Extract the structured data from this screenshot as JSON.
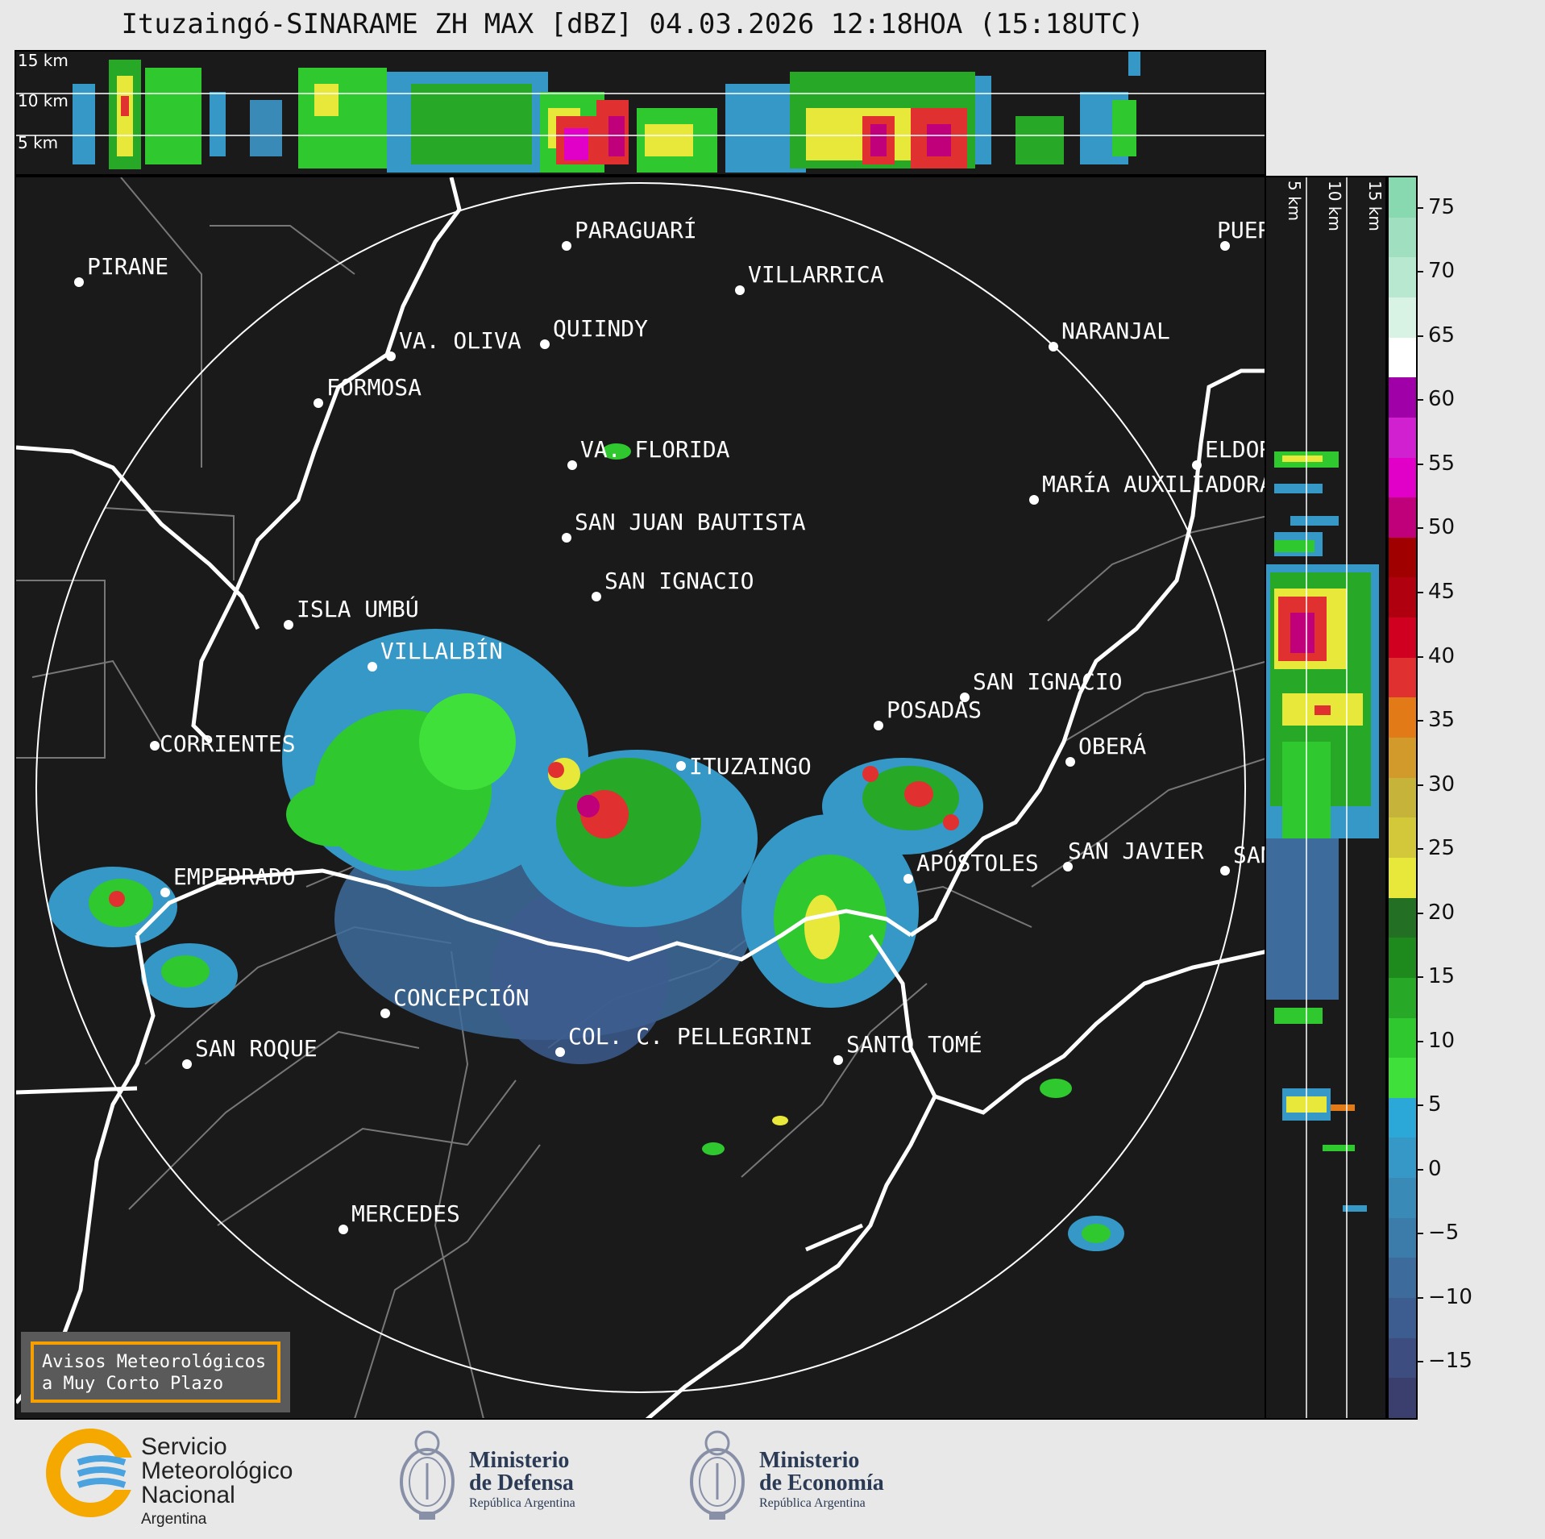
{
  "title": "Ituzaingó-SINARAME ZH MAX [dBZ] 04.03.2026 12:18HOA (15:18UTC)",
  "top_panel": {
    "altitude_labels": [
      "15 km",
      "10 km",
      "5 km"
    ]
  },
  "side_panel": {
    "altitude_labels": [
      "5 km",
      "10 km",
      "15 km"
    ]
  },
  "cities": [
    {
      "id": "pirane",
      "label": "PIRANE"
    },
    {
      "id": "paraguari",
      "label": "PARAGUARÍ"
    },
    {
      "id": "villarrica",
      "label": "VILLARRICA"
    },
    {
      "id": "quiindy",
      "label": "QUIINDY"
    },
    {
      "id": "va-oliva",
      "label": "VA. OLIVA"
    },
    {
      "id": "naranjal",
      "label": "NARANJAL"
    },
    {
      "id": "formosa",
      "label": "FORMOSA"
    },
    {
      "id": "va-florida",
      "label": "VA. FLORIDA"
    },
    {
      "id": "eldorado",
      "label": "ELDORADO"
    },
    {
      "id": "maria-auxiliadora",
      "label": "MARÍA AUXILIADORA"
    },
    {
      "id": "san-juan-bautista",
      "label": "SAN JUAN BAUTISTA"
    },
    {
      "id": "san-ignacio-py",
      "label": "SAN IGNACIO"
    },
    {
      "id": "isla-umbu",
      "label": "ISLA UMBÚ"
    },
    {
      "id": "villalbin",
      "label": "VILLALBÍN"
    },
    {
      "id": "san-ignacio-ar",
      "label": "SAN IGNACIO"
    },
    {
      "id": "posadas",
      "label": "POSADAS"
    },
    {
      "id": "corrientes",
      "label": "CORRIENTES"
    },
    {
      "id": "ituzaingo",
      "label": "ITUZAINGO"
    },
    {
      "id": "obera",
      "label": "OBERÁ"
    },
    {
      "id": "empedrado",
      "label": "EMPEDRADO"
    },
    {
      "id": "apostoles",
      "label": "APÓSTOLES"
    },
    {
      "id": "san-javier",
      "label": "SAN JAVIER"
    },
    {
      "id": "san-pedro",
      "label": "SAN PEDRO"
    },
    {
      "id": "concepcion",
      "label": "CONCEPCIÓN"
    },
    {
      "id": "col-pellegrini",
      "label": "COL. C. PELLEGRINI"
    },
    {
      "id": "santo-tome",
      "label": "SANTO TOMÉ"
    },
    {
      "id": "san-roque",
      "label": "SAN ROQUE"
    },
    {
      "id": "mercedes",
      "label": "MERCEDES"
    },
    {
      "id": "puerto-iguazu",
      "label": "PUERTO IGUAZÚ"
    }
  ],
  "colorbar": {
    "unit": "dBZ",
    "ticks": [
      "75",
      "70",
      "65",
      "60",
      "55",
      "50",
      "45",
      "40",
      "35",
      "30",
      "25",
      "20",
      "15",
      "10",
      "5",
      "0",
      "−5",
      "−10",
      "−15"
    ],
    "colors": [
      "#3b3f6e",
      "#3d4d80",
      "#3d5c8f",
      "#3d6c9c",
      "#3b7cab",
      "#3a8ab8",
      "#3598c6",
      "#2ba8d8",
      "#3fe03a",
      "#2fc82f",
      "#27a827",
      "#1e8a1e",
      "#236f23",
      "#e8e83a",
      "#d2c83a",
      "#c6b43a",
      "#d29a2a",
      "#e27a18",
      "#e03030",
      "#d00020",
      "#b00010",
      "#a00000",
      "#c0007a",
      "#e000c8",
      "#d020d0",
      "#a000a8",
      "#ffffff",
      "#d8f2e4",
      "#b8e8d0",
      "#a0e0c0",
      "#88d8b0"
    ]
  },
  "notice": {
    "line1": "Avisos Meteorológicos",
    "line2": "a Muy Corto Plazo"
  },
  "footer": {
    "smn": {
      "line1": "Servicio",
      "line2": "Meteorológico",
      "line3": "Nacional",
      "line4": "Argentina"
    },
    "defensa": {
      "line1": "Ministerio",
      "line2": "de Defensa",
      "line3": "República Argentina"
    },
    "economia": {
      "line1": "Ministerio",
      "line2": "de Economía",
      "line3": "República Argentina"
    }
  }
}
